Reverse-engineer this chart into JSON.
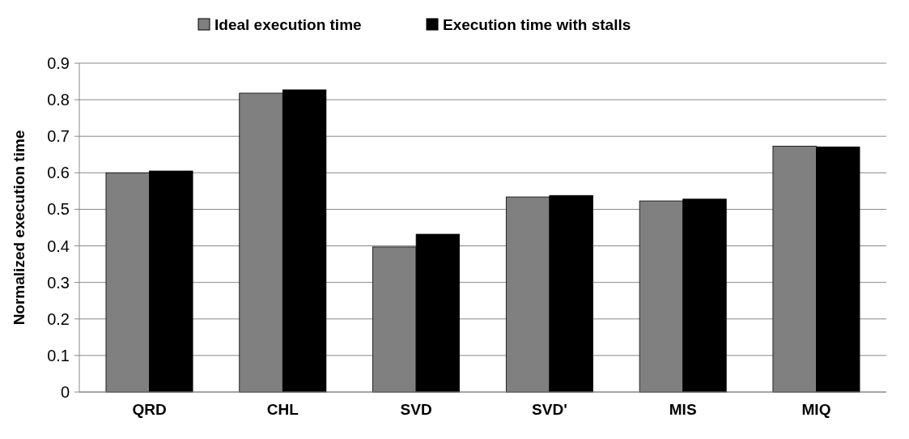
{
  "chart_data": {
    "type": "bar",
    "ylabel": "Normalized execution time",
    "categories": [
      "QRD",
      "CHL",
      "SVD",
      "SVD'",
      "MIS",
      "MIQ"
    ],
    "series": [
      {
        "name": "Ideal execution time",
        "color": "#808080",
        "values": [
          0.6,
          0.818,
          0.397,
          0.534,
          0.523,
          0.673
        ]
      },
      {
        "name": "Execution time with stalls",
        "color": "#000000",
        "values": [
          0.605,
          0.827,
          0.432,
          0.538,
          0.528,
          0.671
        ]
      }
    ],
    "ylim": [
      0,
      0.9
    ],
    "yticks": [
      0,
      0.1,
      0.2,
      0.3,
      0.4,
      0.5,
      0.6,
      0.7,
      0.8,
      0.9
    ],
    "grid": "y",
    "legend": "top"
  }
}
